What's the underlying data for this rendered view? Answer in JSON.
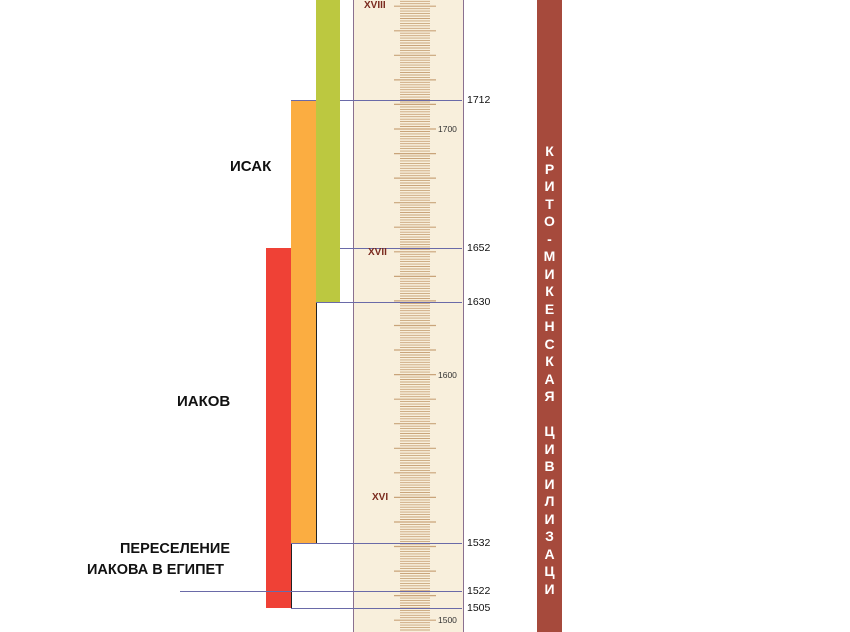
{
  "people": [
    {
      "name": "ИСАК"
    },
    {
      "name": "ИАКОВ"
    }
  ],
  "event": {
    "line1": "ПЕРЕСЕЛЕНИЕ",
    "line2": "ИАКОВА В ЕГИПЕТ"
  },
  "years": {
    "y1712": "1712",
    "y1652": "1652",
    "y1630": "1630",
    "y1532": "1532",
    "y1522": "1522",
    "y1505": "1505"
  },
  "ruler_ticks": {
    "t1700": "1700",
    "t1600": "1600",
    "t1500": "1500"
  },
  "centuries": {
    "c18": "XVIII",
    "c17": "XVII",
    "c16": "XVI"
  },
  "civilization": {
    "text": "КРИТО-МИКЕНСКАЯ ЦИВИЛИЗАЦИ"
  },
  "colors": {
    "green_bar": "#bcc840",
    "orange_bar": "#fbad41",
    "red_bar": "#ef4136",
    "ruler_bg": "#f8efdc",
    "ruler_ticks": "#c9a47a",
    "civilization_band": "#a64a3c"
  }
}
